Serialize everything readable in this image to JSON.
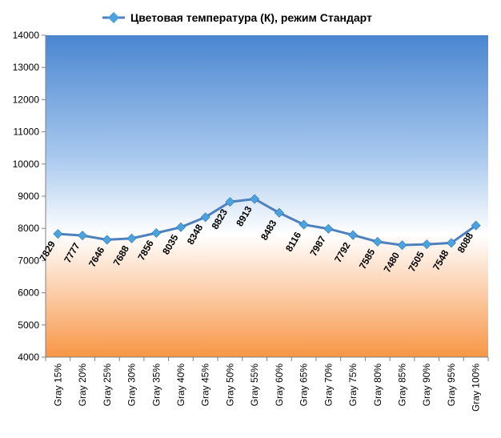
{
  "chart_data": {
    "type": "line",
    "title": "Цветовая температура (К), режим Стандарт",
    "xlabel": "",
    "ylabel": "",
    "ylim": [
      4000,
      14000
    ],
    "yticks": [
      4000,
      5000,
      6000,
      7000,
      8000,
      9000,
      10000,
      11000,
      12000,
      13000,
      14000
    ],
    "categories": [
      "Gray 15%",
      "Gray 20%",
      "Gray 25%",
      "Gray 30%",
      "Gray 35%",
      "Gray 40%",
      "Gray 45%",
      "Gray 50%",
      "Gray 55%",
      "Gray 60%",
      "Gray 65%",
      "Gray 70%",
      "Gray 75%",
      "Gray 80%",
      "Gray 85%",
      "Gray 90%",
      "Gray 95%",
      "Gray 100%"
    ],
    "series": [
      {
        "name": "Цветовая температура (К), режим Стандарт",
        "values": [
          7829,
          7777,
          7646,
          7688,
          7856,
          8035,
          8348,
          8823,
          8913,
          8483,
          8116,
          7987,
          7792,
          7585,
          7480,
          7505,
          7548,
          8088
        ]
      }
    ],
    "legend_position": "top",
    "grid": false,
    "colors": {
      "line": "#4f81bd",
      "marker": "#4aa3df",
      "background_top": "#4a86d0",
      "background_mid": "#ffffff",
      "background_bottom": "#f79646"
    }
  }
}
